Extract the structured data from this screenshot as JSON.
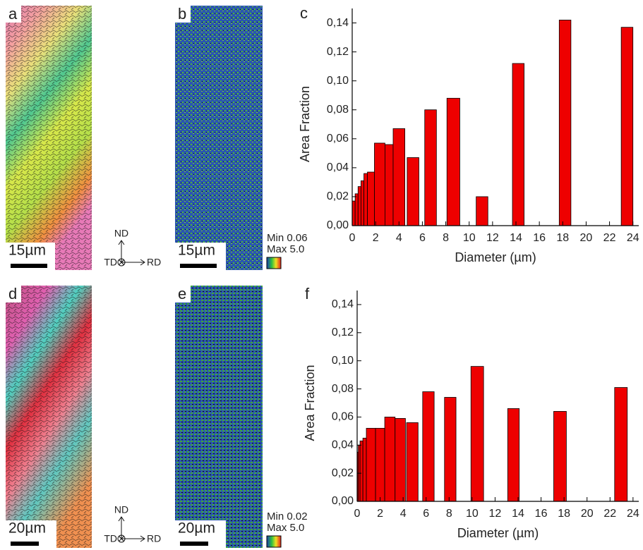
{
  "images": [
    {
      "label": "a",
      "scale_bar": "15µm"
    },
    {
      "label": "b",
      "scale_bar": "15µm",
      "colorbar_min": "Min 0.06",
      "colorbar_max": "Max 5.0"
    },
    {
      "label": "d",
      "scale_bar": "20µm"
    },
    {
      "label": "e",
      "scale_bar": "20µm",
      "colorbar_min": "Min 0.02",
      "colorbar_max": "Max 5.0"
    }
  ],
  "axes_symbols": [
    {
      "up": "ND",
      "left": "TD",
      "right": "RD"
    },
    {
      "up": "ND",
      "left": "TD",
      "right": "RD"
    }
  ],
  "chart_data": [
    {
      "type": "bar",
      "label": "c",
      "x_label": "Diameter (µm)",
      "y_label": "Area Fraction",
      "color": "#ee0000",
      "x_left": [
        0,
        0.25,
        0.5,
        0.75,
        1,
        1.3,
        1.9,
        2.8,
        3.5,
        4.7,
        6.2,
        8.1,
        10.6,
        13.7,
        17.7,
        23
      ],
      "x_right": [
        0.25,
        0.5,
        0.75,
        1,
        1.3,
        1.9,
        2.8,
        3.5,
        4.5,
        5.7,
        7.2,
        9.2,
        11.6,
        14.7,
        18.7,
        24
      ],
      "values": [
        0.017,
        0.022,
        0.027,
        0.031,
        0.036,
        0.037,
        0.057,
        0.056,
        0.067,
        0.047,
        0.08,
        0.088,
        0.02,
        0.112,
        0.142,
        0.137
      ],
      "xlim": [
        0,
        24.5
      ],
      "ylim": [
        0,
        0.15
      ],
      "xticks": [
        0,
        2,
        4,
        6,
        8,
        10,
        12,
        14,
        16,
        18,
        20,
        22,
        24
      ],
      "yticks": [
        {
          "value": 0,
          "label": "0,00"
        },
        {
          "value": 0.02,
          "label": "0,02"
        },
        {
          "value": 0.04,
          "label": "0,04"
        },
        {
          "value": 0.06,
          "label": "0,06"
        },
        {
          "value": 0.08,
          "label": "0,08"
        },
        {
          "value": 0.1,
          "label": "0,10"
        },
        {
          "value": 0.12,
          "label": "0,12"
        },
        {
          "value": 0.14,
          "label": "0,14"
        }
      ]
    },
    {
      "type": "bar",
      "label": "f",
      "x_label": "Diameter (µm)",
      "y_label": "Area Fraction",
      "color": "#ee0000",
      "x_left": [
        0,
        0.1,
        0.25,
        0.5,
        0.8,
        1.6,
        2.4,
        3.3,
        4.3,
        5.7,
        7.6,
        9.9,
        13.1,
        17.1,
        22.4
      ],
      "x_right": [
        0.1,
        0.25,
        0.5,
        0.8,
        1.6,
        2.4,
        3.3,
        4.2,
        5.3,
        6.7,
        8.6,
        11.0,
        14.1,
        18.2,
        23.5
      ],
      "values": [
        0.035,
        0.04,
        0.043,
        0.045,
        0.052,
        0.052,
        0.06,
        0.059,
        0.056,
        0.078,
        0.074,
        0.096,
        0.066,
        0.064,
        0.081
      ],
      "xlim": [
        0,
        24.5
      ],
      "ylim": [
        0,
        0.15
      ],
      "xticks": [
        0,
        2,
        4,
        6,
        8,
        10,
        12,
        14,
        16,
        18,
        20,
        22,
        24
      ],
      "yticks": [
        {
          "value": 0,
          "label": "0,00"
        },
        {
          "value": 0.02,
          "label": "0,02"
        },
        {
          "value": 0.04,
          "label": "0,04"
        },
        {
          "value": 0.06,
          "label": "0,06"
        },
        {
          "value": 0.08,
          "label": "0,08"
        },
        {
          "value": 0.1,
          "label": "0,10"
        },
        {
          "value": 0.12,
          "label": "0,12"
        },
        {
          "value": 0.14,
          "label": "0,14"
        }
      ]
    }
  ]
}
